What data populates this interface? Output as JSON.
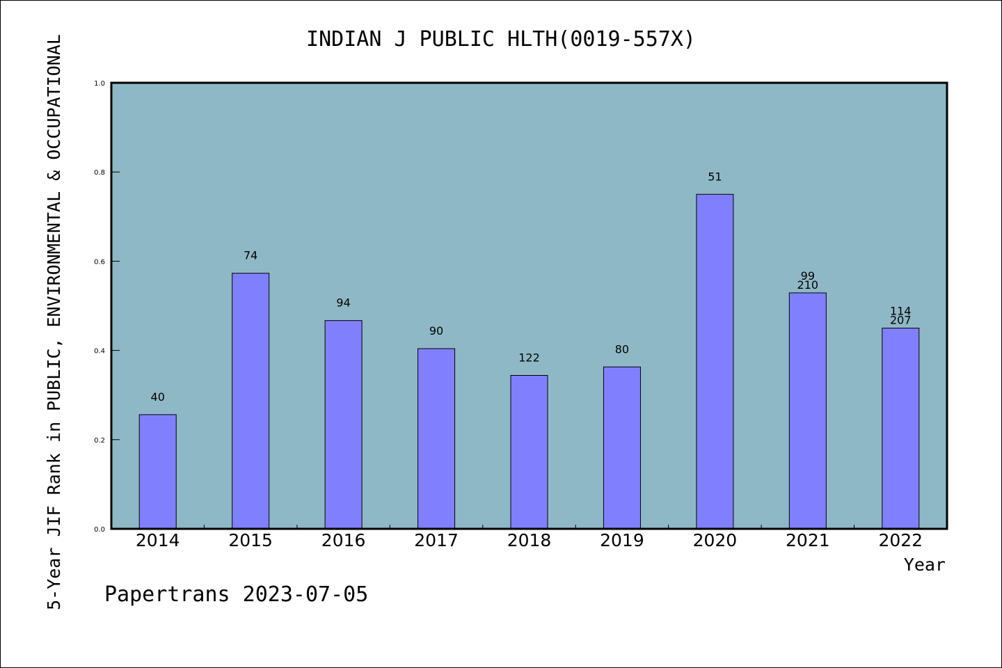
{
  "chart_data": {
    "type": "bar",
    "title": "INDIAN J PUBLIC HLTH(0019-557X)",
    "xlabel": "Year",
    "ylabel": "5-Year JIF Rank in PUBLIC, ENVIRONMENTAL & OCCUPATIONAL",
    "ylim": [
      0,
      1
    ],
    "yticks": [
      "0.0",
      "0.2",
      "0.4",
      "0.6",
      "0.8",
      "1.0"
    ],
    "categories": [
      "2014",
      "2015",
      "2016",
      "2017",
      "2018",
      "2019",
      "2020",
      "2021",
      "2022"
    ],
    "values": [
      0.256,
      0.573,
      0.467,
      0.404,
      0.344,
      0.363,
      0.75,
      0.529,
      0.45
    ],
    "rank_labels": [
      "40",
      "74",
      "94",
      "90",
      "122",
      "80",
      "51",
      "99",
      "114"
    ],
    "total_labels": [
      "",
      "",
      "",
      "",
      "",
      "",
      "",
      "210",
      "207"
    ],
    "grid": false,
    "plot_background": "#8fb8c6",
    "bar_color": "#8080ff"
  },
  "footer": "Papertrans 2023-07-05"
}
